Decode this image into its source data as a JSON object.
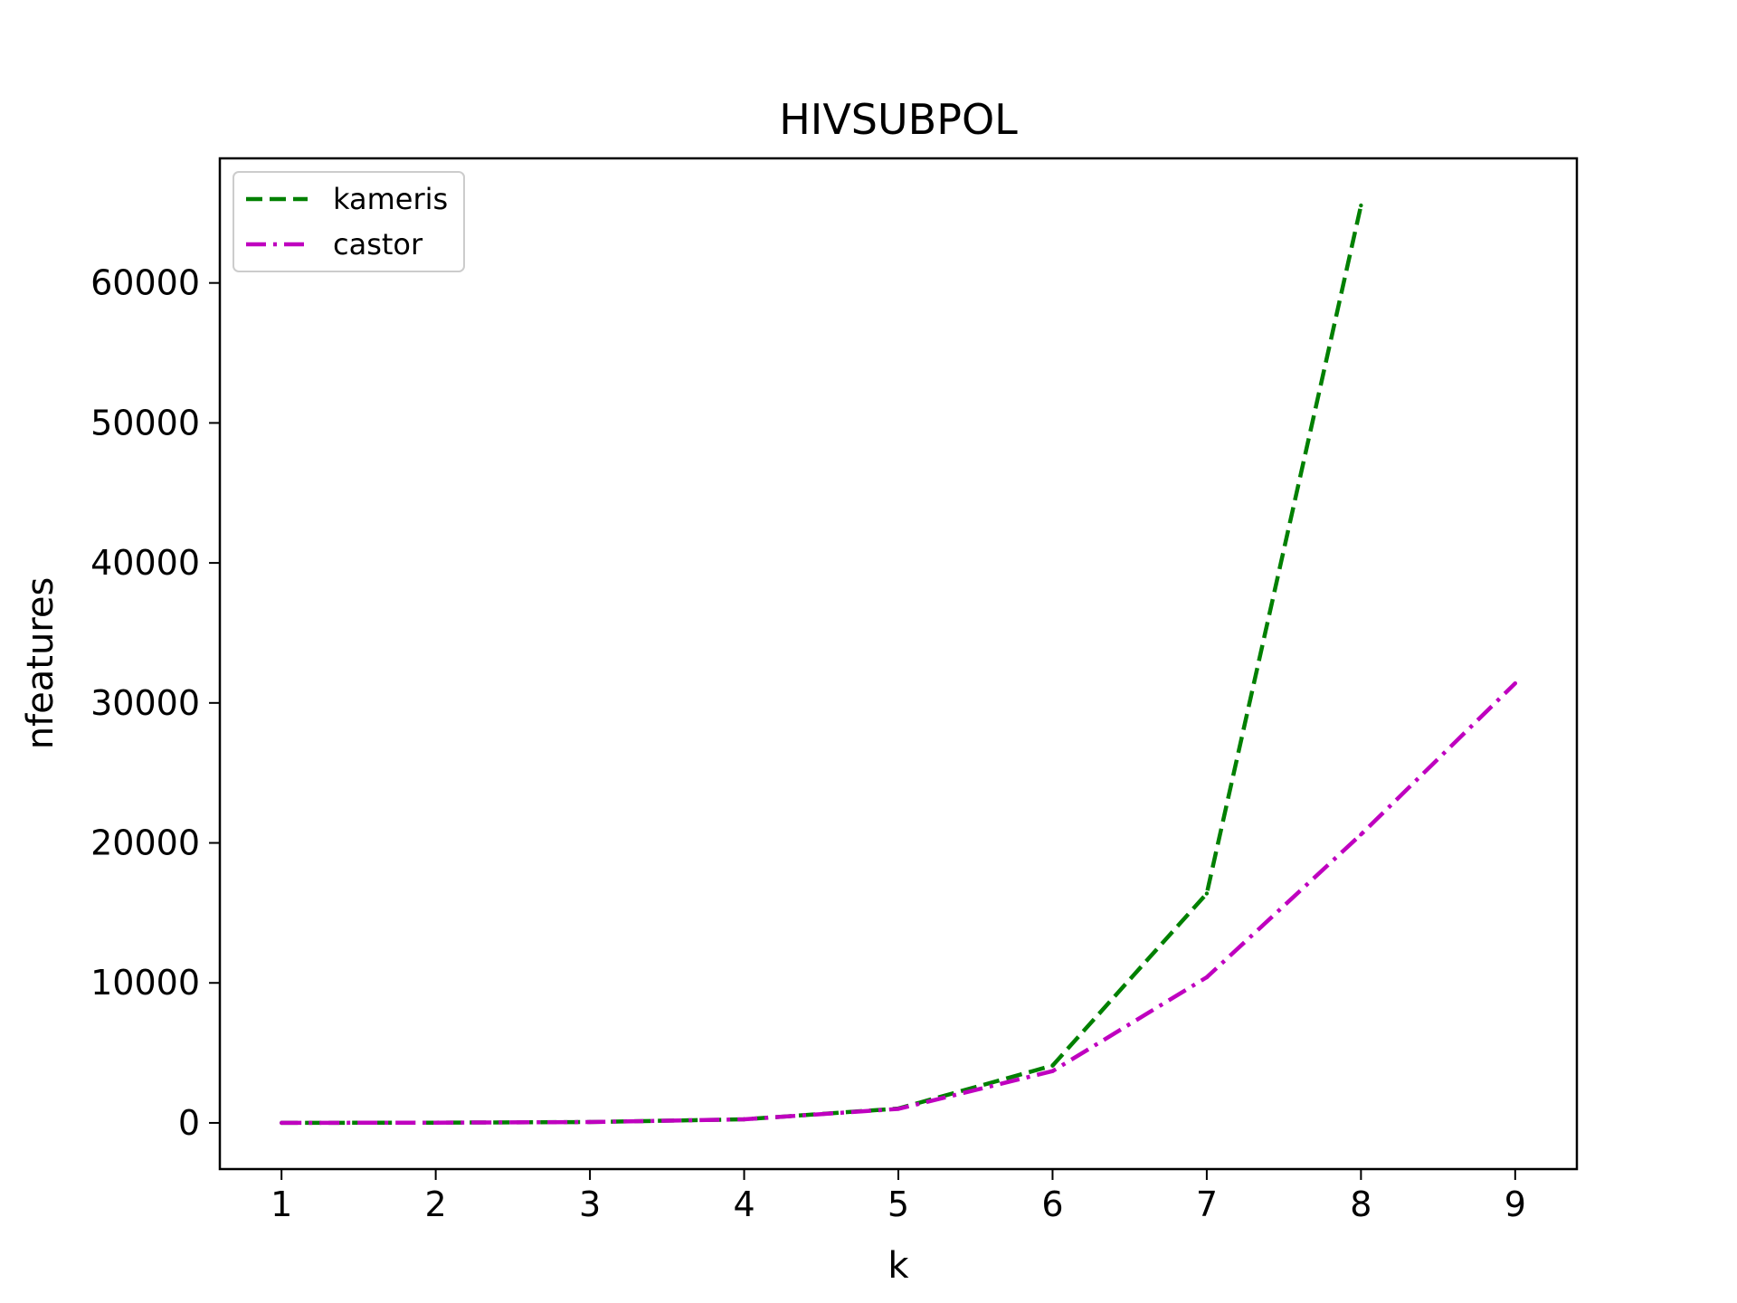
{
  "chart_data": {
    "type": "line",
    "title": "HIVSUBPOL",
    "xlabel": "k",
    "ylabel": "nfeatures",
    "x": [
      1,
      2,
      3,
      4,
      5,
      6,
      7,
      8,
      9
    ],
    "xlim": [
      0.6,
      9.4
    ],
    "ylim": [
      -3300,
      68900
    ],
    "xticks": [
      1,
      2,
      3,
      4,
      5,
      6,
      7,
      8,
      9
    ],
    "yticks": [
      0,
      10000,
      20000,
      30000,
      40000,
      50000,
      60000
    ],
    "grid": false,
    "legend_position": "top-left",
    "series": [
      {
        "name": "kameris",
        "x": [
          1,
          2,
          3,
          4,
          5,
          6,
          7,
          8
        ],
        "values": [
          4,
          16,
          64,
          256,
          1024,
          4096,
          16384,
          65536
        ],
        "color": "#008000",
        "style": "dashed"
      },
      {
        "name": "castor",
        "x": [
          1,
          2,
          3,
          4,
          5,
          6,
          7,
          8,
          9
        ],
        "values": [
          4,
          16,
          64,
          256,
          1000,
          3700,
          10400,
          20600,
          31400
        ],
        "color": "#bf00bf",
        "style": "dashdot"
      }
    ]
  }
}
